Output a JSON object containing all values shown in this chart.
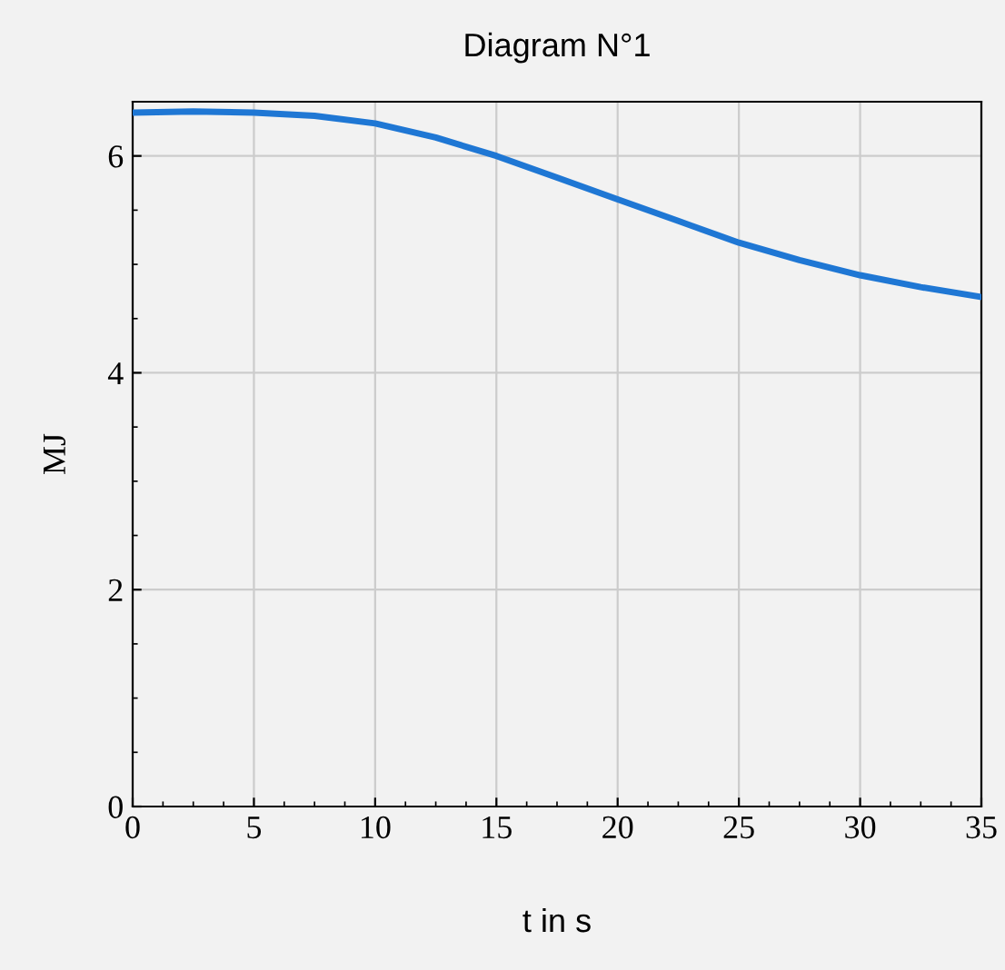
{
  "chart_data": {
    "type": "line",
    "title": "Diagram N°1",
    "xlabel": "t in s",
    "ylabel": "MJ",
    "x": [
      0,
      2.5,
      5,
      7.5,
      10,
      12.5,
      15,
      17.5,
      20,
      22.5,
      25,
      27.5,
      30,
      32.5,
      35
    ],
    "series": [
      {
        "color": "#1f77d4",
        "values": [
          6.4,
          6.41,
          6.4,
          6.37,
          6.3,
          6.17,
          6.0,
          5.8,
          5.6,
          5.4,
          5.2,
          5.04,
          4.9,
          4.79,
          4.7
        ]
      }
    ],
    "xlim": [
      0,
      35
    ],
    "ylim": [
      0,
      6.5
    ],
    "xticks": [
      0,
      5,
      10,
      15,
      20,
      25,
      30,
      35
    ],
    "yticks": [
      0,
      2,
      4,
      6
    ],
    "grid": true,
    "marker": "none",
    "line_style": "solid"
  }
}
